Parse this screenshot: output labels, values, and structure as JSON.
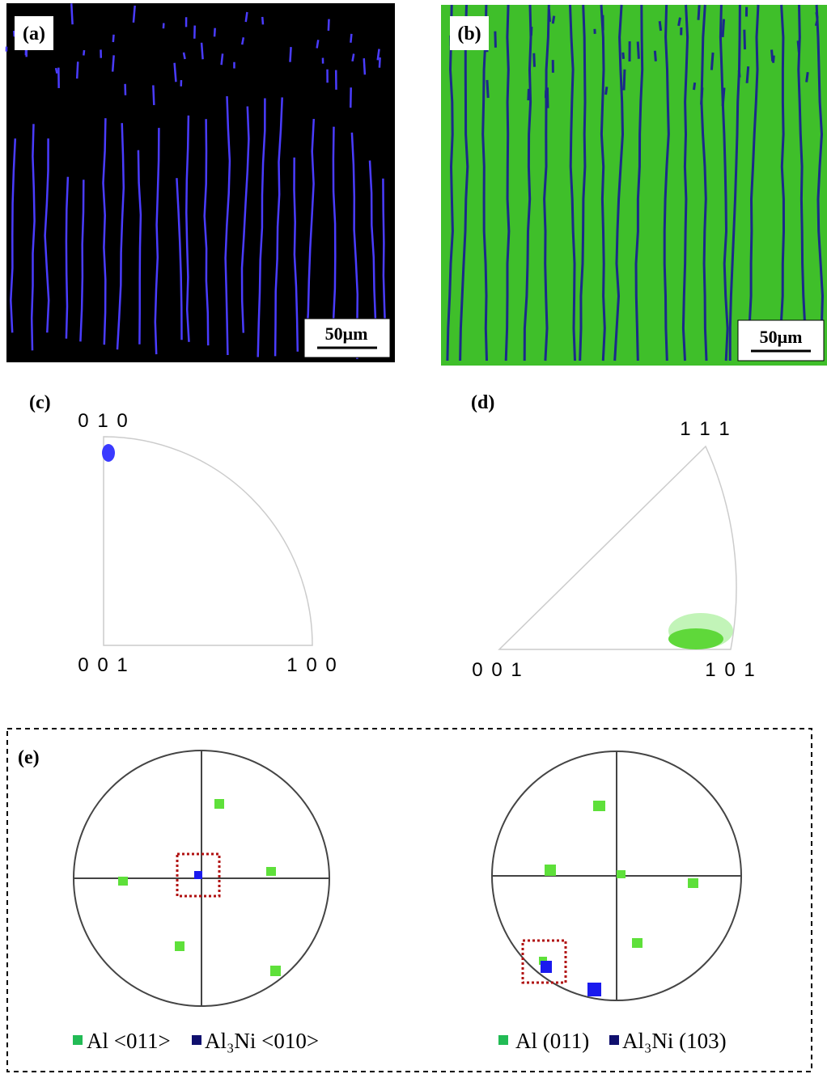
{
  "panels": {
    "a": {
      "label": "(a)",
      "scale_bar": "50μm"
    },
    "b": {
      "label": "(b)",
      "scale_bar": "50μm"
    },
    "c": {
      "label": "(c)",
      "poles": [
        "0 1 0",
        "0 0 1",
        "1 0 0"
      ]
    },
    "d": {
      "label": "(d)",
      "poles": [
        "1 1 1",
        "0 0 1",
        "1 0 1"
      ]
    },
    "e": {
      "label": "(e)",
      "left_legend": [
        "Al <011>",
        "Al₃Ni <010>"
      ],
      "right_legend": [
        "Al (011)",
        "Al₃Ni (103)"
      ]
    }
  }
}
